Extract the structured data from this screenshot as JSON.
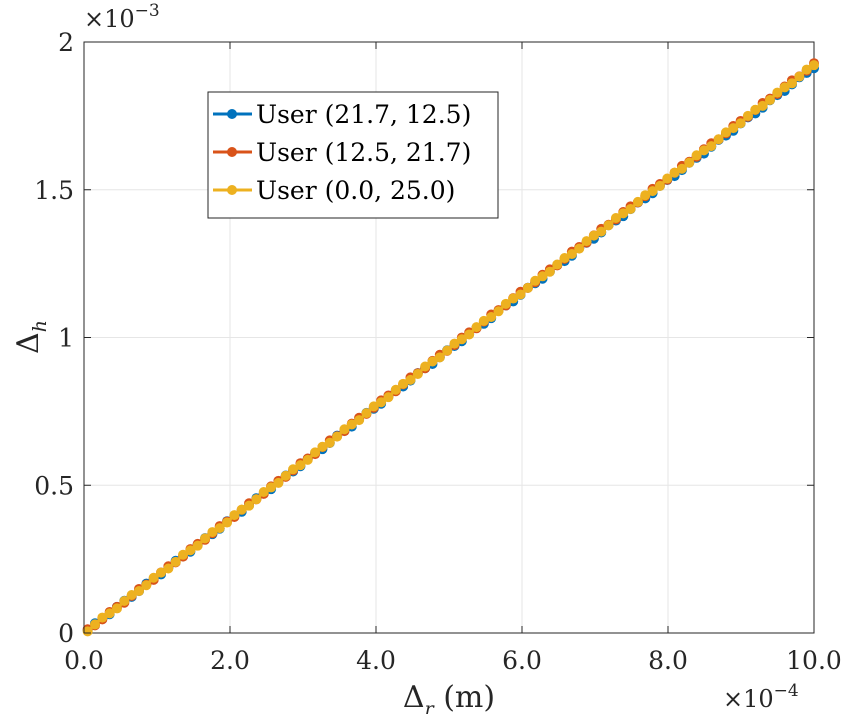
{
  "chart_data": {
    "type": "line",
    "title": "",
    "xlabel": {
      "base": "Δ",
      "sub": "r",
      "unit": " (m)"
    },
    "ylabel": {
      "base": "Δ",
      "sub": "h"
    },
    "x_multiplier": {
      "base": "×10",
      "exp": "−4"
    },
    "y_multiplier": {
      "base": "×10",
      "exp": "−3"
    },
    "xlim": [
      0,
      10
    ],
    "ylim": [
      0,
      2
    ],
    "x_ticks": [
      0,
      2,
      4,
      6,
      8,
      10
    ],
    "x_tick_labels": [
      "0.0",
      "2.0",
      "4.0",
      "6.0",
      "8.0",
      "10.0"
    ],
    "y_ticks": [
      0,
      0.5,
      1,
      1.5,
      2
    ],
    "y_tick_labels": [
      "0",
      "0.5",
      "1",
      "1.5",
      "2"
    ],
    "grid": true,
    "legend_position": "upper-left",
    "series": [
      {
        "name": "User (21.7, 12.5)",
        "color": "#0072BD",
        "x_start": 0.05,
        "x_end": 10.0,
        "count": 100,
        "slope": 0.1915,
        "intercept": 0.0
      },
      {
        "name": "User (12.5, 21.7)",
        "color": "#D95319",
        "x_start": 0.05,
        "x_end": 10.0,
        "count": 100,
        "slope": 0.1925,
        "intercept": 0.0
      },
      {
        "name": "User (0.0, 25.0)",
        "color": "#EDB120",
        "x_start": 0.05,
        "x_end": 10.0,
        "count": 100,
        "slope": 0.1922,
        "intercept": 0.0
      }
    ]
  }
}
